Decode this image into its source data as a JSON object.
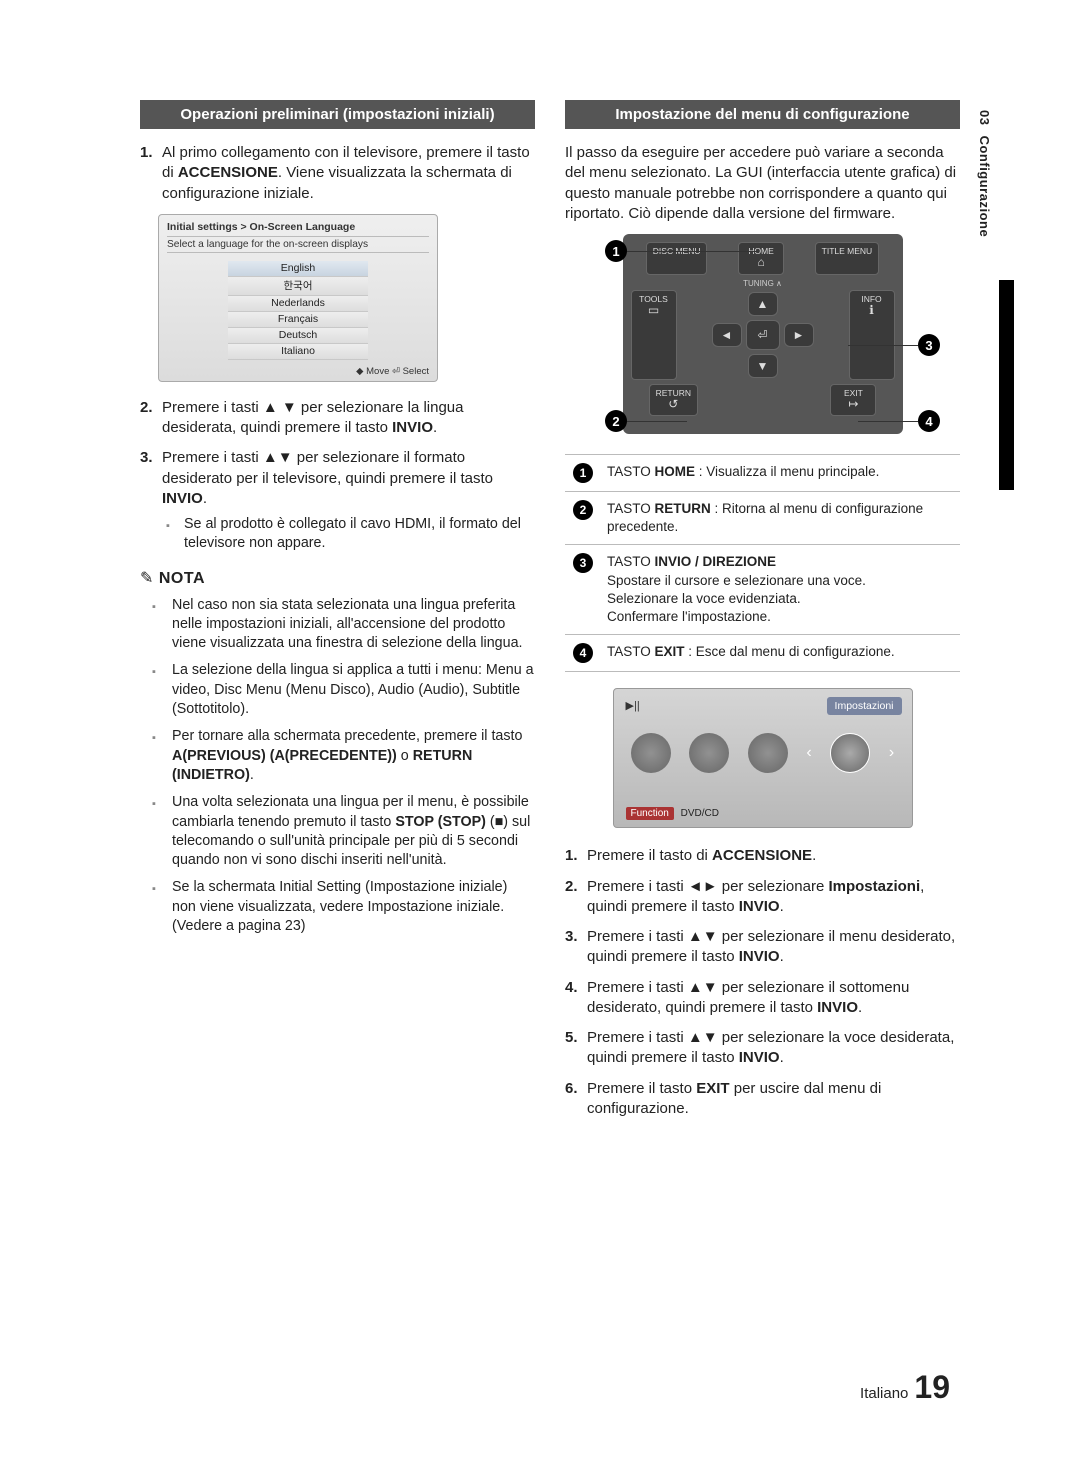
{
  "sideTab": {
    "num": "03",
    "label": "Configurazione"
  },
  "left": {
    "header": "Operazioni preliminari (impostazioni iniziali)",
    "step1_pre": "Al primo collegamento con il televisore, premere il tasto di ",
    "step1_bold": "ACCENSIONE",
    "step1_post": ". Viene visualizzata la schermata di configurazione iniziale.",
    "langPanel": {
      "title": "Initial settings > On-Screen Language",
      "sub": "Select a language for the on-screen displays",
      "langs": [
        "English",
        "한국어",
        "Nederlands",
        "Français",
        "Deutsch",
        "Italiano"
      ],
      "foot": "◆ Move   ⏎ Select"
    },
    "step2": "Premere i tasti ▲ ▼ per selezionare la lingua desiderata, quindi premere il tasto ",
    "step2_bold": "INVIO",
    "step3": "Premere i tasti ▲▼ per selezionare il formato desiderato per il televisore, quindi premere il tasto ",
    "step3_bold": "INVIO",
    "step3_sub": "Se al prodotto è collegato il cavo HDMI, il formato del televisore non appare.",
    "notaLabel": "NOTA",
    "nota": [
      "Nel caso non sia stata selezionata una lingua preferita nelle impostazioni iniziali, all'accensione del prodotto viene visualizzata una finestra di selezione della lingua.",
      "La selezione della lingua si applica a tutti i menu: Menu a video, Disc Menu (Menu Disco), Audio (Audio), Subtitle (Sottotitolo).",
      "Per tornare alla schermata precedente, premere il tasto <b>A(PREVIOUS) (A(PRECEDENTE))</b> o <b>RETURN (INDIETRO)</b>.",
      "Una volta selezionata una lingua per il menu, è possibile cambiarla tenendo premuto il tasto <b>STOP (STOP)</b> (■) sul telecomando o sull'unità principale per più di 5 secondi quando non vi sono dischi inseriti nell'unità.",
      "Se la schermata Initial Setting (Impostazione iniziale) non viene visualizzata, vedere Impostazione iniziale. (Vedere a pagina 23)"
    ]
  },
  "right": {
    "header": "Impostazione del menu di configurazione",
    "intro": "Il passo da eseguire per accedere può variare a seconda del menu selezionato. La GUI (interfaccia utente grafica) di questo manuale potrebbe non corrispondere a quanto qui riportato. Ciò dipende dalla versione del firmware.",
    "remoteLabels": {
      "discMenu": "DISC MENU",
      "home": "HOME",
      "titleMenu": "TITLE MENU",
      "tools": "TOOLS",
      "info": "INFO",
      "return": "RETURN",
      "exit": "EXIT",
      "tuning": "TUNING ∧"
    },
    "callouts": [
      {
        "n": "1",
        "html": "TASTO <b>HOME</b> : Visualizza il menu principale."
      },
      {
        "n": "2",
        "html": "TASTO <b>RETURN</b> : Ritorna al menu di configurazione precedente."
      },
      {
        "n": "3",
        "html": "TASTO <b>INVIO / DIREZIONE</b><br>Spostare il cursore e selezionare una voce.<br>Selezionare la voce evidenziata.<br>Confermare l'impostazione."
      },
      {
        "n": "4",
        "html": "TASTO <b>EXIT</b> : Esce dal menu di configurazione."
      }
    ],
    "screen": {
      "playpause": "▶||",
      "impost": "Impostazioni",
      "function": "Function",
      "source": "DVD/CD"
    },
    "steps": [
      "Premere il tasto di <b>ACCENSIONE</b>.",
      "Premere i tasti ◄► per selezionare <b>Impostazioni</b>, quindi premere il tasto <b>INVIO</b>.",
      "Premere i tasti ▲▼ per selezionare il menu desiderato, quindi premere il tasto <b>INVIO</b>.",
      "Premere i tasti ▲▼ per selezionare il sottomenu desiderato, quindi premere il tasto <b>INVIO</b>.",
      "Premere i tasti ▲▼ per selezionare la voce desiderata, quindi premere il tasto <b>INVIO</b>.",
      "Premere il tasto <b>EXIT</b> per uscire dal menu di configurazione."
    ]
  },
  "footer": {
    "lang": "Italiano",
    "page": "19"
  }
}
